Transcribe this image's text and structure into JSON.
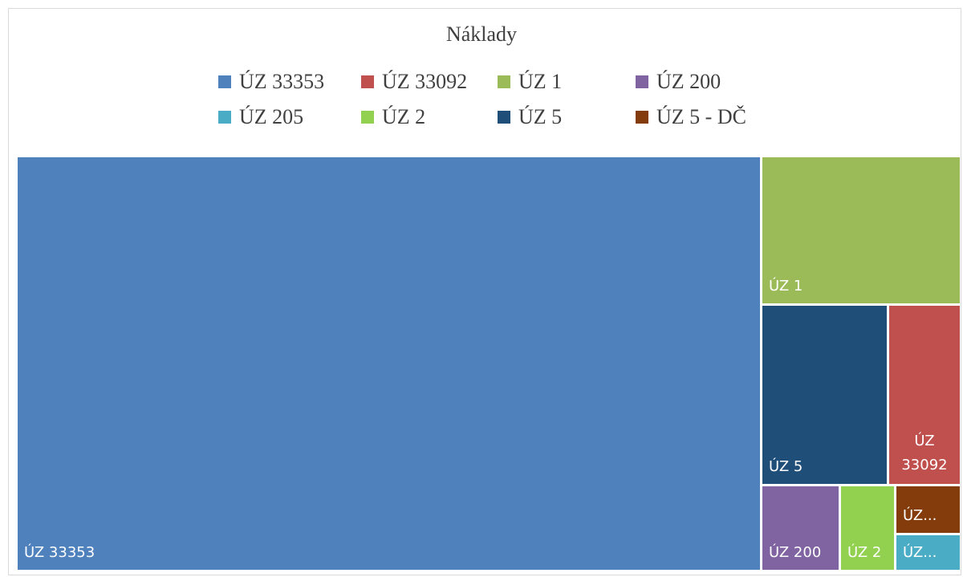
{
  "chart_data": {
    "type": "treemap",
    "title": "Náklady",
    "legend_position": "top",
    "series": [
      {
        "name": "ÚZ 33353",
        "value": 1000,
        "color": "#4F81BD",
        "label": "ÚZ 33353"
      },
      {
        "name": "ÚZ 33092",
        "value": 42,
        "color": "#C0504D",
        "label": "ÚZ 33092"
      },
      {
        "name": "ÚZ 1",
        "value": 95,
        "color": "#9BBB59",
        "label": "ÚZ 1"
      },
      {
        "name": "ÚZ 200",
        "value": 23,
        "color": "#8064A2",
        "label": "ÚZ 200"
      },
      {
        "name": "ÚZ 205",
        "value": 8,
        "color": "#4BACC6",
        "label": "ÚZ..."
      },
      {
        "name": "ÚZ 2",
        "value": 16,
        "color": "#92D050",
        "label": "ÚZ 2"
      },
      {
        "name": "ÚZ 5",
        "value": 74,
        "color": "#1F4E79",
        "label": "ÚZ 5"
      },
      {
        "name": "ÚZ 5 - DČ",
        "value": 11,
        "color": "#843C0C",
        "label": "ÚZ..."
      }
    ]
  }
}
